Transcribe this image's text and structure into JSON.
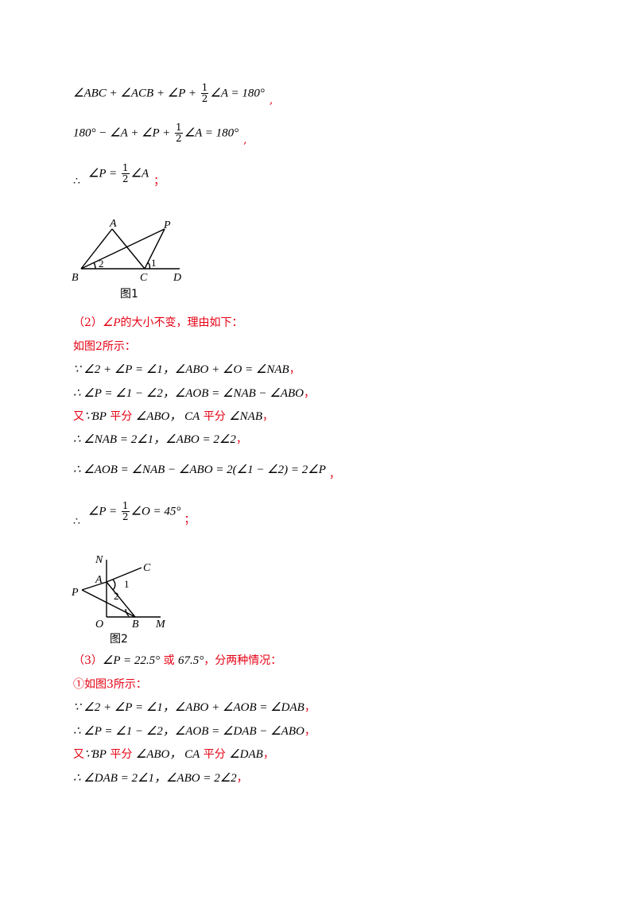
{
  "lines": {
    "l1": {
      "a": "∠ABC + ∠ACB + ∠P + ",
      "num": "1",
      "den": "2",
      "b": "∠A = 180°",
      "tail": ","
    },
    "l2": {
      "a": "180° − ∠A + ∠P + ",
      "num": "1",
      "den": "2",
      "b": "∠A = 180°",
      "tail": ","
    },
    "l3": {
      "therefore": "∴",
      "a": "∠P = ",
      "num": "1",
      "den": "2",
      "b": "∠A",
      "tail": "；"
    },
    "fig1": {
      "caption": "图1",
      "A": "A",
      "P": "P",
      "B": "B",
      "C": "C",
      "D": "D",
      "one": "1",
      "two": "2"
    },
    "p2_head": {
      "a": "（2）",
      "m": "∠P",
      "b": "的大小不变，理由如下："
    },
    "p2_fig": "如图2所示：",
    "p2_l1": {
      "a": "∵ ∠2 + ∠P = ∠1，",
      "b": "∠ABO + ∠O = ∠NAB",
      "tail": "，"
    },
    "p2_l2": {
      "a": "∴ ∠P = ∠1 − ∠2，",
      "b": "∠AOB = ∠NAB − ∠ABO",
      "tail": "，"
    },
    "p2_l3": {
      "you": "又",
      "a": "∵BP",
      "ping1": " 平分 ",
      "b": "∠ABO，",
      "c": " CA",
      "ping2": " 平分 ",
      "d": "∠NAB",
      "tail": "，"
    },
    "p2_l4": {
      "a": "∴ ∠NAB = 2∠1，",
      "b": "∠ABO = 2∠2",
      "tail": "，"
    },
    "p2_l5": {
      "a": "∴ ∠AOB = ∠NAB − ∠ABO = 2(∠1 − ∠2) = 2∠P",
      "tail": "，"
    },
    "p2_l6": {
      "therefore": "∴",
      "a": "∠P = ",
      "num": "1",
      "den": "2",
      "b": "∠O = 45°",
      "tail": "；"
    },
    "fig2": {
      "caption": "图2",
      "N": "N",
      "A": "A",
      "C": "C",
      "P": "P",
      "O": "O",
      "B": "B",
      "M": "M",
      "one": "1",
      "two": "2"
    },
    "p3_head": {
      "a": "（3）",
      "m1": "∠P = 22.5°",
      "huo": " 或 ",
      "m2": "67.5°",
      "b": "，分两种情况："
    },
    "p3_fig": "①如图3所示：",
    "p3_l1": {
      "a": "∵ ∠2 + ∠P = ∠1，",
      "b": "∠ABO + ∠AOB = ∠DAB",
      "tail": "，"
    },
    "p3_l2": {
      "a": "∴ ∠P = ∠1 − ∠2，",
      "b": "∠AOB = ∠DAB − ∠ABO",
      "tail": "，"
    },
    "p3_l3": {
      "you": "又",
      "a": "∵BP",
      "ping1": " 平分 ",
      "b": "∠ABO，",
      "c": " CA",
      "ping2": " 平分 ",
      "d": "∠DAB",
      "tail": "，"
    },
    "p3_l4": {
      "a": "∴ ∠DAB = 2∠1，",
      "b": "∠ABO = 2∠2",
      "tail": "，"
    }
  },
  "colors": {
    "red": "#e60012",
    "black": "#000000"
  }
}
